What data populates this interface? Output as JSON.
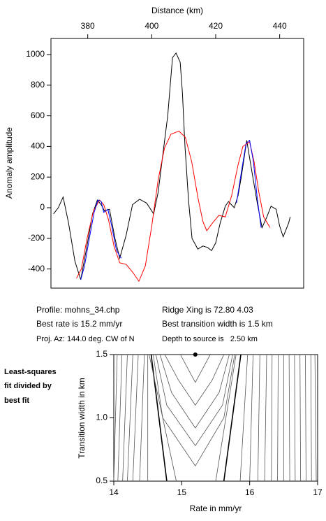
{
  "chart_data": [
    {
      "type": "line",
      "xlabel": "Distance (km)",
      "ylabel": "Anomaly amplitude",
      "xlim": [
        368.5,
        447.5
      ],
      "xticks": [
        380,
        400,
        420,
        440
      ],
      "ylim": [
        -525,
        1105
      ],
      "yticks": [
        -400,
        -200,
        0,
        200,
        400,
        600,
        800,
        1000
      ],
      "series": [
        {
          "color": "#000000",
          "x": [
            369.3,
            370.8,
            372.3,
            374,
            376,
            377.8,
            379.5,
            381.5,
            383,
            384.2,
            385.2,
            386.8,
            388.5,
            390,
            392,
            394,
            396.2,
            398.4,
            400.6,
            402,
            403.5,
            405,
            406.5,
            407.6,
            408.9,
            409.6,
            410.4,
            411.5,
            412.6,
            414.4,
            416,
            417.5,
            418.7,
            420,
            421.4,
            423,
            424,
            425.8,
            427,
            428,
            429.7,
            431.2,
            433,
            434.5,
            436,
            437.3,
            438.9,
            440,
            441.1,
            442.8,
            443.3
          ],
          "values": [
            -40,
            0,
            70,
            -100,
            -350,
            -470,
            -280,
            -40,
            50,
            20,
            -20,
            -10,
            -200,
            -330,
            -180,
            20,
            55,
            30,
            -40,
            100,
            350,
            600,
            980,
            1010,
            950,
            750,
            400,
            50,
            -200,
            -270,
            -250,
            -260,
            -280,
            -230,
            -100,
            10,
            40,
            0,
            80,
            200,
            440,
            250,
            30,
            -130,
            -60,
            10,
            -10,
            -120,
            -190,
            -100,
            -60
          ]
        },
        {
          "color": "#ff0000",
          "x": [
            376.5,
            378,
            379.8,
            381.8,
            383.7,
            385,
            386.5,
            388.2,
            390,
            392,
            394,
            396,
            398,
            400,
            402,
            404,
            406,
            408.5,
            410.5,
            412.5,
            414.5,
            416,
            417.2,
            419,
            421,
            423,
            425,
            427,
            428.5,
            430.6,
            432,
            433.5,
            435,
            437
          ],
          "values": [
            -460,
            -400,
            -200,
            -20,
            50,
            20,
            -80,
            -250,
            -360,
            -370,
            -420,
            -480,
            -380,
            -120,
            180,
            390,
            480,
            500,
            460,
            300,
            60,
            -90,
            -150,
            -100,
            -50,
            -60,
            80,
            280,
            400,
            430,
            300,
            100,
            -60,
            -130
          ]
        },
        {
          "color": "#0000ff",
          "x": [
            377.8,
            379,
            380.5,
            382,
            383.2,
            384.2,
            385,
            386.3,
            387.5,
            389,
            390.5,
            null,
            426.5,
            428,
            429.5,
            430.6,
            431.8,
            433,
            434.2
          ],
          "values": [
            -470,
            -380,
            -200,
            -30,
            50,
            40,
            -30,
            -10,
            -120,
            -280,
            -330,
            null,
            30,
            230,
            420,
            440,
            300,
            60,
            -130
          ]
        }
      ]
    },
    {
      "type": "contour",
      "xlabel": "Rate in mm/yr",
      "ylabel": "Transition width in km",
      "xlim": [
        14,
        17
      ],
      "xticks": [
        14,
        15,
        16,
        17
      ],
      "ylim": [
        0.5,
        1.5
      ],
      "yticks": [
        0.5,
        {
          "value": 1,
          "label": "1.0"
        },
        1.5
      ],
      "point": {
        "x": 15.2,
        "y": 1.5,
        "color": "#000000"
      },
      "contours": [
        {
          "color": "#555555",
          "x": [
            14.05,
            14.0
          ],
          "y": [
            1.5,
            0.5
          ]
        },
        {
          "color": "#555555",
          "x": [
            14.12,
            14.06
          ],
          "y": [
            1.5,
            0.5
          ]
        },
        {
          "color": "#555555",
          "x": [
            14.2,
            14.13
          ],
          "y": [
            1.5,
            0.5
          ]
        },
        {
          "color": "#555555",
          "x": [
            14.28,
            14.2
          ],
          "y": [
            1.5,
            0.5
          ]
        },
        {
          "color": "#555555",
          "x": [
            14.36,
            14.28
          ],
          "y": [
            1.5,
            0.5
          ]
        },
        {
          "color": "#555555",
          "x": [
            14.45,
            14.38
          ],
          "y": [
            1.5,
            0.5
          ]
        },
        {
          "color": "#555555",
          "x": [
            14.5,
            14.5
          ],
          "y": [
            1.5,
            0.5
          ]
        },
        {
          "color": "#000000",
          "x": [
            14.55,
            14.78
          ],
          "y": [
            1.5,
            0.5
          ]
        },
        {
          "color": "#555555",
          "x": [
            14.52,
            14.92
          ],
          "y": [
            1.5,
            0.5
          ]
        },
        {
          "color": "#555555",
          "x": [
            14.98,
            15.2,
            15.42
          ],
          "y": [
            1.5,
            1.28,
            1.5
          ]
        },
        {
          "color": "#555555",
          "x": [
            14.75,
            14.95,
            15.2,
            15.45,
            15.62
          ],
          "y": [
            1.5,
            1.3,
            1.1,
            1.3,
            1.5
          ]
        },
        {
          "color": "#555555",
          "x": [
            14.68,
            14.85,
            15.2,
            15.55,
            15.7
          ],
          "y": [
            1.5,
            1.2,
            0.92,
            1.2,
            1.5
          ]
        },
        {
          "color": "#555555",
          "x": [
            14.62,
            14.78,
            15.2,
            15.6,
            15.75
          ],
          "y": [
            1.5,
            1.1,
            0.78,
            1.1,
            1.5
          ]
        },
        {
          "color": "#555555",
          "x": [
            14.58,
            14.72,
            15.2,
            15.62,
            15.78
          ],
          "y": [
            1.5,
            1.0,
            0.62,
            1.0,
            1.5
          ]
        },
        {
          "color": "#555555",
          "x": [
            15.8,
            15.5
          ],
          "y": [
            1.5,
            0.5
          ]
        },
        {
          "color": "#000000",
          "x": [
            15.87,
            15.62
          ],
          "y": [
            1.5,
            0.5
          ]
        },
        {
          "color": "#555555",
          "x": [
            15.97,
            15.86
          ],
          "y": [
            1.5,
            0.5
          ]
        },
        {
          "color": "#555555",
          "x": [
            16.05,
            16.0
          ],
          "y": [
            1.5,
            0.5
          ]
        },
        {
          "color": "#555555",
          "x": [
            16.15,
            16.12
          ],
          "y": [
            1.5,
            0.5
          ]
        },
        {
          "color": "#555555",
          "x": [
            16.25,
            16.22
          ],
          "y": [
            1.5,
            0.5
          ]
        },
        {
          "color": "#555555",
          "x": [
            16.33,
            16.32
          ],
          "y": [
            1.5,
            0.5
          ]
        },
        {
          "color": "#555555",
          "x": [
            16.42,
            16.41
          ],
          "y": [
            1.5,
            0.5
          ]
        },
        {
          "color": "#555555",
          "x": [
            16.5,
            16.5
          ],
          "y": [
            1.5,
            0.5
          ]
        },
        {
          "color": "#555555",
          "x": [
            16.58,
            16.59
          ],
          "y": [
            1.5,
            0.5
          ]
        },
        {
          "color": "#555555",
          "x": [
            16.66,
            16.67
          ],
          "y": [
            1.5,
            0.5
          ]
        },
        {
          "color": "#555555",
          "x": [
            16.74,
            16.75
          ],
          "y": [
            1.5,
            0.5
          ]
        },
        {
          "color": "#555555",
          "x": [
            16.82,
            16.83
          ],
          "y": [
            1.5,
            0.5
          ]
        },
        {
          "color": "#555555",
          "x": [
            16.9,
            16.91
          ],
          "y": [
            1.5,
            0.5
          ]
        },
        {
          "color": "#555555",
          "x": [
            16.96,
            16.98
          ],
          "y": [
            1.5,
            0.5
          ]
        }
      ]
    }
  ],
  "info": [
    [
      "Profile: mohns_34.chp",
      "Ridge Xing is 72.80 4.03"
    ],
    [
      "Best rate is 15.2 mm/yr",
      "Best transition width is 1.5 km"
    ],
    [
      "Proj. Az: 144.0 deg. CW of N",
      "Depth to source is   2.50 km"
    ]
  ],
  "note": [
    "Least-squares",
    "fit divided by",
    "best fit"
  ]
}
